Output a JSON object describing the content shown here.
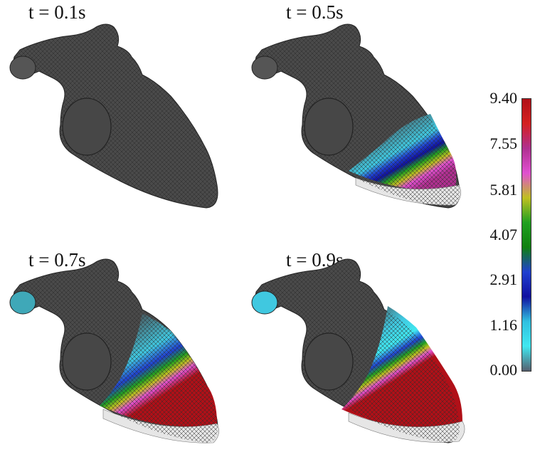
{
  "panels": [
    {
      "label": "t = 0.1s",
      "activation": 0.0
    },
    {
      "label": "t = 0.5s",
      "activation": 0.5
    },
    {
      "label": "t = 0.7s",
      "activation": 0.7
    },
    {
      "label": "t = 0.9s",
      "activation": 0.9
    }
  ],
  "colorbar": {
    "ticks": [
      "9.40",
      "7.55",
      "5.81",
      "4.07",
      "2.91",
      "1.16",
      "0.00"
    ],
    "colors": [
      "#b01018",
      "#d42020",
      "#b03090",
      "#e050d0",
      "#c0c020",
      "#20a020",
      "#108010",
      "#2040d0",
      "#1010a0",
      "#30c0e0",
      "#40e8f0",
      "#556070"
    ]
  },
  "colors": {
    "tissue": "#4a4a4a",
    "mesh_line": "#2a2a2a",
    "mesh_open": "#dcdcdc"
  }
}
